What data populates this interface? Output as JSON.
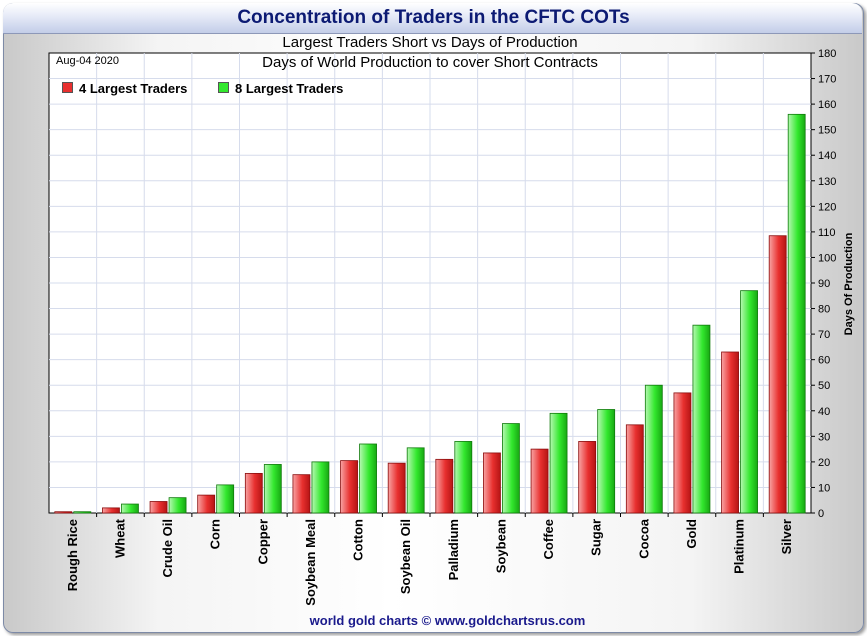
{
  "header": {
    "title": "Concentration of Traders in the CFTC COTs"
  },
  "footer": {
    "credit": "world gold charts © www.goldchartsrus.com"
  },
  "colors": {
    "series_4": "#e8302f",
    "series_8": "#33e82e",
    "title_text": "#0c1a73",
    "footer_text": "#1a1a8c"
  },
  "chart_data": {
    "type": "bar",
    "title": "Largest Traders Short vs Days of Production",
    "subtitle": "Days of World Production to cover Short Contracts",
    "date_label": "Aug-04  2020",
    "xlabel": "",
    "ylabel": "Days Of Production",
    "y_axis_side": "right",
    "ylim": [
      0,
      180
    ],
    "y_ticks": [
      0,
      10,
      20,
      30,
      40,
      50,
      60,
      70,
      80,
      90,
      100,
      110,
      120,
      130,
      140,
      150,
      160,
      170,
      180
    ],
    "grid": true,
    "legend_position": "top-left",
    "categories": [
      "Rough Rice",
      "Wheat",
      "Crude Oil",
      "Corn",
      "Copper",
      "Soybean Meal",
      "Cotton",
      "Soybean Oil",
      "Palladium",
      "Soybean",
      "Coffee",
      "Sugar",
      "Cocoa",
      "Gold",
      "Platinum",
      "Silver"
    ],
    "series": [
      {
        "name": "4 Largest Traders",
        "color": "#e8302f",
        "values": [
          0.5,
          2,
          4.5,
          7,
          15.5,
          15,
          20.5,
          19.5,
          21,
          23.5,
          25,
          28,
          34.5,
          47,
          63,
          108.5
        ]
      },
      {
        "name": "8 Largest Traders",
        "color": "#33e82e",
        "values": [
          0.5,
          3.5,
          6,
          11,
          19,
          20,
          27,
          25.5,
          28,
          35,
          39,
          40.5,
          50,
          73.5,
          87,
          156
        ]
      }
    ]
  }
}
